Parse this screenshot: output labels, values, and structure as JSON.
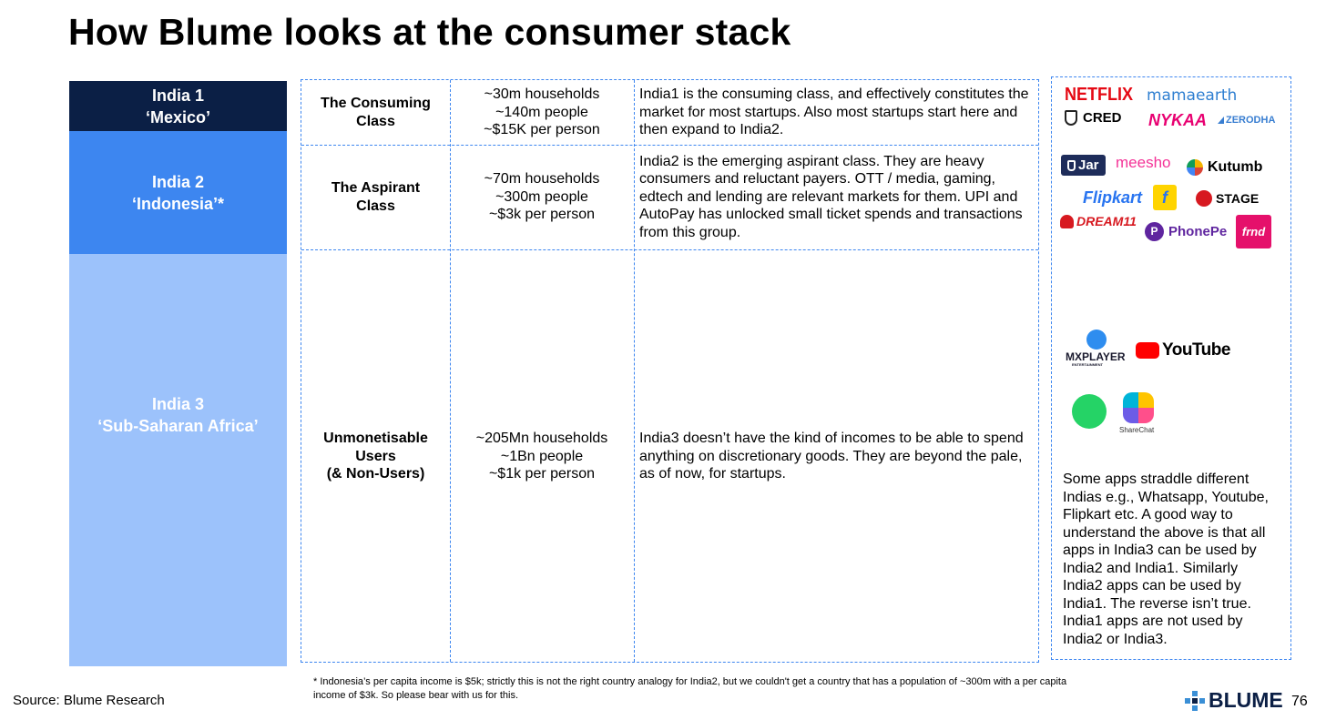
{
  "title": "How Blume looks at the consumer stack",
  "tiers": [
    {
      "line1": "India 1",
      "line2": "‘Mexico’"
    },
    {
      "line1": "India 2",
      "line2": "‘Indonesia’*"
    },
    {
      "line1": "India 3",
      "line2": "‘Sub-Saharan Africa’"
    }
  ],
  "rows": [
    {
      "class_lines": [
        "The Consuming",
        "Class"
      ],
      "stats": [
        "~30m households",
        "~140m people",
        "~$15K per person"
      ],
      "desc": "India1 is the consuming class, and effectively constitutes the market for most startups. Also most startups start here and then expand to India2."
    },
    {
      "class_lines": [
        "The Aspirant",
        "Class"
      ],
      "stats": [
        "~70m households",
        "~300m people",
        "~$3k per person"
      ],
      "desc": "India2 is the emerging aspirant class. They are heavy consumers and reluctant payers. OTT / media, gaming, edtech and lending are relevant markets for them. UPI and AutoPay has unlocked small ticket spends and transactions from this group."
    },
    {
      "class_lines": [
        "Unmonetisable",
        "Users",
        "(& Non-Users)"
      ],
      "stats": [
        "~205Mn households",
        "~1Bn people",
        "~$1k per person"
      ],
      "desc": "India3 doesn’t have the kind of incomes to be able to spend anything on discretionary goods. They are beyond the pale, as of now, for startups."
    }
  ],
  "logos": {
    "netflix": "NETFLIX",
    "mamaearth": "mamaearth",
    "cred": "CRED",
    "nykaa": "NYKAA",
    "zerodha": "ZERODHA",
    "jar": "Jar",
    "meesho": "meesho",
    "kutumb": "Kutumb",
    "flipkart": "Flipkart",
    "stage": "STAGE",
    "dream11": "DREAM11",
    "phonepe": "PhonePe",
    "frnd": "frnd",
    "mxplayer": "MXPLAYER",
    "mxplayer_sub": "ENTERTAINMENT",
    "youtube": "YouTube",
    "sharechat": "ShareChat"
  },
  "note": "Some apps straddle different Indias e.g., Whatsapp, Youtube, Flipkart etc. A good way to understand the above is that all apps in India3 can be used by India2 and India1. Similarly India2 apps can be used by India1. The reverse isn’t true. India1 apps are not used by India2 or India3.",
  "source": "Source: Blume Research",
  "footnote": "* Indonesia’s per capita income is $5k; strictly this is not the right country analogy for India2, but we couldn't get a country that has a population of ~300m with a per capita income of $3k. So please bear with us for this.",
  "brand": "BLUME",
  "page_number": "76",
  "colors": {
    "navy": "#0b1f45",
    "blue": "#3d86f0",
    "light_blue": "#9cc2fb"
  }
}
